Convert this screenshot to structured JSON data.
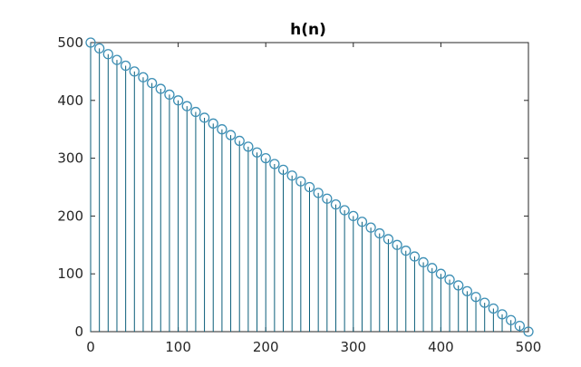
{
  "chart_data": {
    "type": "stem",
    "title": "h(n)",
    "xlabel": "",
    "ylabel": "",
    "xlim": [
      0,
      500
    ],
    "ylim": [
      0,
      500
    ],
    "xticks": [
      0,
      100,
      200,
      300,
      400,
      500
    ],
    "yticks": [
      0,
      100,
      200,
      300,
      400,
      500
    ],
    "grid": false,
    "series": [
      {
        "x": [
          0,
          10,
          20,
          30,
          40,
          50,
          60,
          70,
          80,
          90,
          100,
          110,
          120,
          130,
          140,
          150,
          160,
          170,
          180,
          190,
          200,
          210,
          220,
          230,
          240,
          250,
          260,
          270,
          280,
          290,
          300,
          310,
          320,
          330,
          340,
          350,
          360,
          370,
          380,
          390,
          400,
          410,
          420,
          430,
          440,
          450,
          460,
          470,
          480,
          490,
          500
        ],
        "y": [
          500,
          490,
          480,
          470,
          460,
          450,
          440,
          430,
          420,
          410,
          400,
          390,
          380,
          370,
          360,
          350,
          340,
          330,
          320,
          310,
          300,
          290,
          280,
          270,
          260,
          250,
          240,
          230,
          220,
          210,
          200,
          190,
          180,
          170,
          160,
          150,
          140,
          130,
          120,
          110,
          100,
          90,
          80,
          70,
          60,
          50,
          40,
          30,
          20,
          10,
          0
        ],
        "marker": "circle"
      }
    ],
    "colors": {
      "stem": "#0b5e7a",
      "marker": "#3d8fb5",
      "axes": "#262626"
    }
  }
}
